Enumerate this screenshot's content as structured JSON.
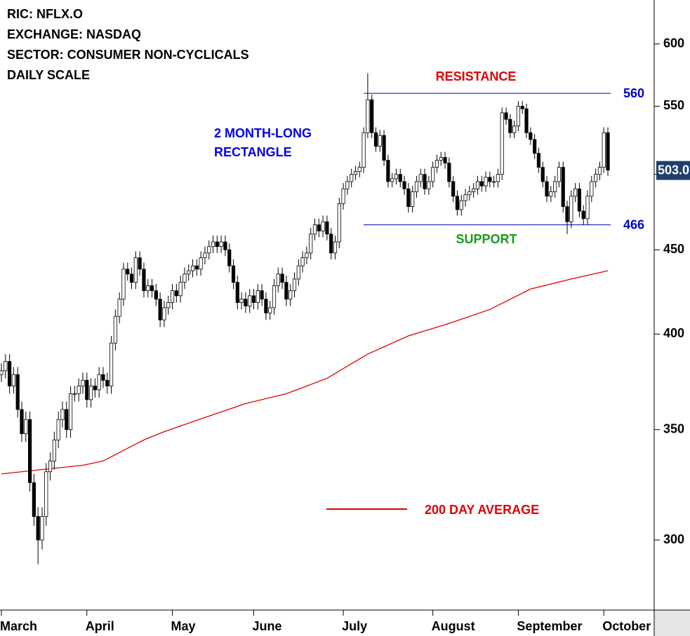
{
  "chart_data": {
    "type": "candlestick",
    "header": [
      "RIC: NFLX.O",
      "EXCHANGE: NASDAQ",
      "SECTOR: CONSUMER NON-CYCLICALS",
      "DAILY SCALE"
    ],
    "categories": [
      "March",
      null,
      null,
      null,
      null,
      null,
      null,
      null,
      null,
      null,
      null,
      null,
      null,
      null,
      null,
      null,
      null,
      null,
      null,
      null,
      null,
      "April",
      null,
      null,
      null,
      null,
      null,
      null,
      null,
      null,
      null,
      null,
      null,
      null,
      null,
      null,
      null,
      null,
      null,
      null,
      null,
      null,
      "May",
      null,
      null,
      null,
      null,
      null,
      null,
      null,
      null,
      null,
      null,
      null,
      null,
      null,
      null,
      null,
      null,
      null,
      null,
      null,
      "June",
      null,
      null,
      null,
      null,
      null,
      null,
      null,
      null,
      null,
      null,
      null,
      null,
      null,
      null,
      null,
      null,
      null,
      null,
      null,
      null,
      null,
      "July",
      null,
      null,
      null,
      null,
      null,
      null,
      null,
      null,
      null,
      null,
      null,
      null,
      null,
      null,
      null,
      null,
      null,
      null,
      null,
      null,
      null,
      "August",
      null,
      null,
      null,
      null,
      null,
      null,
      null,
      null,
      null,
      null,
      null,
      null,
      null,
      null,
      null,
      null,
      null,
      null,
      null,
      null,
      "September",
      null,
      null,
      null,
      null,
      null,
      null,
      null,
      null,
      null,
      null,
      null,
      null,
      null,
      null,
      null,
      null,
      null,
      null,
      null,
      null,
      "October",
      null
    ],
    "open": [
      378,
      380,
      385,
      372,
      378,
      360,
      348,
      355,
      325,
      310,
      300,
      310,
      330,
      335,
      345,
      355,
      360,
      350,
      368,
      368,
      372,
      375,
      365,
      372,
      370,
      378,
      375,
      372,
      395,
      410,
      420,
      438,
      435,
      430,
      445,
      438,
      425,
      428,
      425,
      420,
      408,
      415,
      418,
      425,
      422,
      430,
      435,
      437,
      440,
      438,
      445,
      448,
      452,
      455,
      452,
      455,
      450,
      440,
      430,
      418,
      420,
      416,
      422,
      418,
      425,
      420,
      412,
      415,
      428,
      435,
      430,
      420,
      425,
      432,
      440,
      445,
      448,
      460,
      466,
      462,
      468,
      460,
      448,
      455,
      480,
      490,
      495,
      500,
      502,
      505,
      530,
      555,
      530,
      520,
      528,
      510,
      495,
      497,
      500,
      495,
      490,
      478,
      488,
      495,
      500,
      490,
      495,
      505,
      510,
      512,
      508,
      495,
      485,
      476,
      482,
      486,
      488,
      490,
      495,
      492,
      498,
      495,
      495,
      500,
      545,
      540,
      530,
      535,
      550,
      548,
      530,
      525,
      515,
      505,
      495,
      485,
      488,
      495,
      505,
      478,
      468,
      485,
      490,
      475,
      470,
      485,
      495,
      500,
      505,
      530
    ],
    "high": [
      384,
      389,
      389,
      382,
      382,
      364,
      359,
      359,
      329,
      314,
      314,
      334,
      339,
      349,
      359,
      364,
      364,
      372,
      372,
      376,
      379,
      379,
      376,
      376,
      382,
      382,
      379,
      399,
      414,
      424,
      442,
      442,
      439,
      449,
      449,
      442,
      432,
      432,
      429,
      424,
      419,
      422,
      429,
      429,
      434,
      439,
      441,
      444,
      444,
      449,
      452,
      456,
      459,
      459,
      459,
      459,
      454,
      444,
      434,
      424,
      424,
      426,
      426,
      429,
      429,
      424,
      419,
      432,
      439,
      439,
      434,
      429,
      436,
      444,
      449,
      452,
      464,
      470,
      470,
      472,
      472,
      464,
      459,
      484,
      494,
      499,
      504,
      506,
      509,
      534,
      576,
      559,
      534,
      532,
      532,
      514,
      501,
      504,
      504,
      499,
      494,
      492,
      499,
      504,
      504,
      499,
      509,
      514,
      516,
      516,
      512,
      499,
      489,
      486,
      490,
      492,
      494,
      499,
      499,
      502,
      502,
      499,
      504,
      549,
      549,
      544,
      539,
      554,
      554,
      552,
      534,
      529,
      519,
      509,
      499,
      492,
      499,
      509,
      509,
      482,
      489,
      494,
      494,
      479,
      489,
      499,
      504,
      509,
      534,
      534
    ],
    "low": [
      374,
      376,
      368,
      368,
      356,
      344,
      344,
      321,
      306,
      290,
      296,
      306,
      326,
      331,
      341,
      351,
      346,
      346,
      364,
      364,
      368,
      361,
      361,
      366,
      366,
      371,
      368,
      368,
      391,
      406,
      416,
      431,
      426,
      426,
      434,
      421,
      421,
      421,
      416,
      404,
      404,
      411,
      414,
      418,
      418,
      426,
      431,
      433,
      434,
      434,
      441,
      444,
      448,
      448,
      448,
      446,
      436,
      426,
      414,
      414,
      412,
      412,
      414,
      414,
      416,
      408,
      408,
      411,
      424,
      426,
      416,
      416,
      421,
      428,
      436,
      441,
      444,
      456,
      458,
      458,
      456,
      444,
      444,
      451,
      476,
      486,
      491,
      496,
      498,
      501,
      526,
      526,
      516,
      516,
      506,
      491,
      491,
      493,
      491,
      486,
      474,
      474,
      484,
      491,
      486,
      486,
      491,
      501,
      506,
      504,
      491,
      481,
      472,
      472,
      478,
      482,
      484,
      486,
      488,
      488,
      491,
      491,
      491,
      496,
      536,
      526,
      526,
      531,
      544,
      526,
      521,
      511,
      501,
      491,
      481,
      481,
      484,
      491,
      474,
      460,
      464,
      481,
      471,
      466,
      466,
      481,
      491,
      496,
      501,
      499
    ],
    "close": [
      380,
      385,
      372,
      378,
      360,
      348,
      355,
      325,
      310,
      300,
      310,
      330,
      335,
      345,
      355,
      360,
      350,
      368,
      368,
      372,
      375,
      365,
      372,
      370,
      378,
      375,
      372,
      395,
      410,
      420,
      438,
      435,
      430,
      445,
      438,
      425,
      428,
      425,
      420,
      408,
      415,
      418,
      425,
      422,
      430,
      435,
      437,
      440,
      438,
      445,
      448,
      452,
      455,
      452,
      455,
      450,
      440,
      430,
      418,
      420,
      416,
      422,
      418,
      425,
      420,
      412,
      415,
      428,
      435,
      430,
      420,
      425,
      432,
      440,
      445,
      448,
      460,
      466,
      462,
      468,
      460,
      448,
      455,
      480,
      490,
      495,
      500,
      502,
      505,
      530,
      555,
      530,
      520,
      528,
      510,
      495,
      497,
      500,
      495,
      490,
      478,
      488,
      495,
      500,
      490,
      495,
      505,
      510,
      512,
      508,
      495,
      485,
      476,
      482,
      486,
      488,
      490,
      495,
      492,
      498,
      495,
      495,
      500,
      545,
      540,
      530,
      535,
      550,
      548,
      530,
      525,
      515,
      505,
      495,
      485,
      488,
      495,
      505,
      478,
      468,
      485,
      490,
      475,
      470,
      485,
      495,
      500,
      505,
      530,
      503
    ],
    "up_color": "#ffffff",
    "down_color": "#000000",
    "yscale": "log",
    "ylim": [
      272,
      638
    ],
    "yticks": [
      300,
      350,
      400,
      450,
      500,
      550,
      600
    ],
    "last_price_label": "503.0",
    "last_price_color": "#1f3f6e",
    "moving_average": {
      "name": "200 DAY AVERAGE",
      "color": "#e00000",
      "x": [
        0,
        10,
        20,
        25,
        30,
        35,
        40,
        50,
        60,
        70,
        80,
        90,
        100,
        110,
        120,
        130,
        140,
        149
      ],
      "values": [
        329,
        331,
        333,
        335,
        340,
        345,
        349,
        356,
        363,
        368,
        376,
        389,
        399,
        406,
        414,
        426,
        432,
        437
      ]
    },
    "levels": [
      {
        "name": "RESISTANCE",
        "value": 560,
        "label": "560",
        "color": "#0000cc",
        "name_color": "#e00000"
      },
      {
        "name": "SUPPORT",
        "value": 466,
        "label": "466",
        "color": "#0000cc",
        "name_color": "#1a9a1a"
      }
    ],
    "annotation": {
      "lines": [
        "2 MONTH-LONG",
        "RECTANGLE"
      ],
      "color": "#0000ee"
    }
  }
}
